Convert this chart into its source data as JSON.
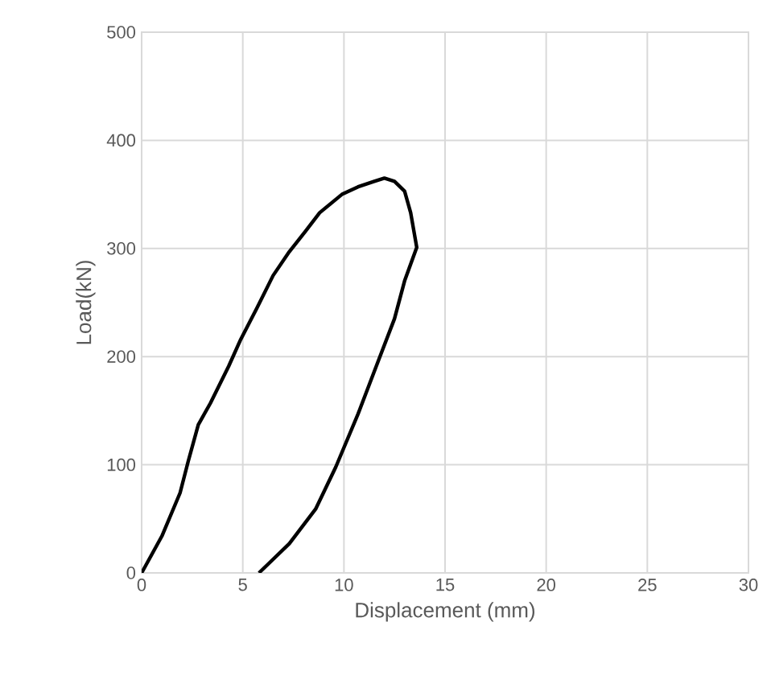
{
  "chart_data": {
    "type": "line",
    "xlabel": "Displacement (mm)",
    "ylabel": "Load(kN)",
    "xlim": [
      0,
      30
    ],
    "ylim": [
      0,
      500
    ],
    "xticks": [
      0,
      5,
      10,
      15,
      20,
      25,
      30
    ],
    "yticks": [
      0,
      100,
      200,
      300,
      400,
      500
    ],
    "grid": true,
    "marker": "none",
    "line_style": "solid",
    "series": [
      {
        "color": "#000000",
        "x": [
          0,
          1.0,
          1.9,
          2.3,
          2.8,
          3.4,
          4.3,
          4.9,
          5.7,
          6.5,
          7.3,
          8.1,
          8.8,
          9.9,
          10.7,
          11.5,
          12.0,
          12.5,
          13.0,
          13.3,
          13.6,
          13.0,
          12.5,
          11.7,
          10.7,
          9.6,
          8.6,
          7.3,
          5.8
        ],
        "values": [
          0,
          34,
          74,
          103,
          137,
          157,
          191,
          216,
          245,
          275,
          297,
          316,
          333,
          350,
          357,
          362,
          365,
          362,
          353,
          333,
          301,
          270,
          235,
          196,
          147,
          98,
          59,
          27,
          0
        ]
      }
    ]
  }
}
